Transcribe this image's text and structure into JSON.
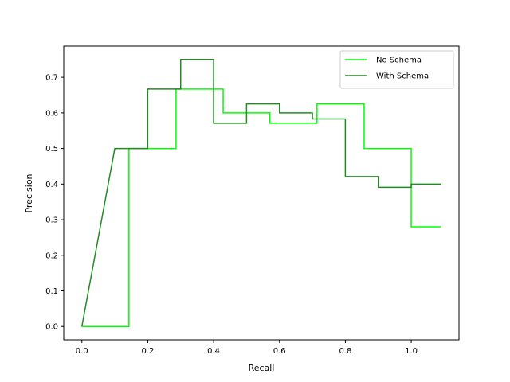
{
  "chart_data": {
    "type": "line",
    "step": "post",
    "xlabel": "Recall",
    "ylabel": "Precision",
    "xlim": [
      -0.055,
      1.145
    ],
    "ylim": [
      -0.0375,
      0.7875
    ],
    "xticks": [
      0.0,
      0.2,
      0.4,
      0.6,
      0.8,
      1.0
    ],
    "xtick_labels": [
      "0.0",
      "0.2",
      "0.4",
      "0.6",
      "0.8",
      "1.0"
    ],
    "yticks": [
      0.0,
      0.1,
      0.2,
      0.3,
      0.4,
      0.5,
      0.6,
      0.7
    ],
    "ytick_labels": [
      "0.0",
      "0.1",
      "0.2",
      "0.3",
      "0.4",
      "0.5",
      "0.6",
      "0.7"
    ],
    "grid": false,
    "legend": "top-right",
    "series": [
      {
        "name": "No Schema",
        "color": "#00ff00",
        "x": [
          0.0,
          0.143,
          0.143,
          0.286,
          0.286,
          0.429,
          0.429,
          0.571,
          0.571,
          0.714,
          0.714,
          0.857,
          0.857,
          1.0,
          1.0,
          1.09
        ],
        "y": [
          0.0,
          0.0,
          0.5,
          0.5,
          0.667,
          0.667,
          0.6,
          0.6,
          0.571,
          0.571,
          0.625,
          0.625,
          0.5,
          0.5,
          0.28,
          0.28
        ]
      },
      {
        "name": "With Schema",
        "color": "#228b22",
        "x": [
          0.0,
          0.1,
          0.2,
          0.2,
          0.3,
          0.3,
          0.4,
          0.4,
          0.5,
          0.5,
          0.6,
          0.6,
          0.7,
          0.7,
          0.8,
          0.8,
          0.9,
          0.9,
          1.0,
          1.0,
          1.09
        ],
        "y": [
          0.0,
          0.5,
          0.5,
          0.667,
          0.667,
          0.75,
          0.75,
          0.571,
          0.571,
          0.625,
          0.625,
          0.6,
          0.6,
          0.583,
          0.583,
          0.421,
          0.421,
          0.391,
          0.391,
          0.4,
          0.4
        ]
      }
    ]
  }
}
